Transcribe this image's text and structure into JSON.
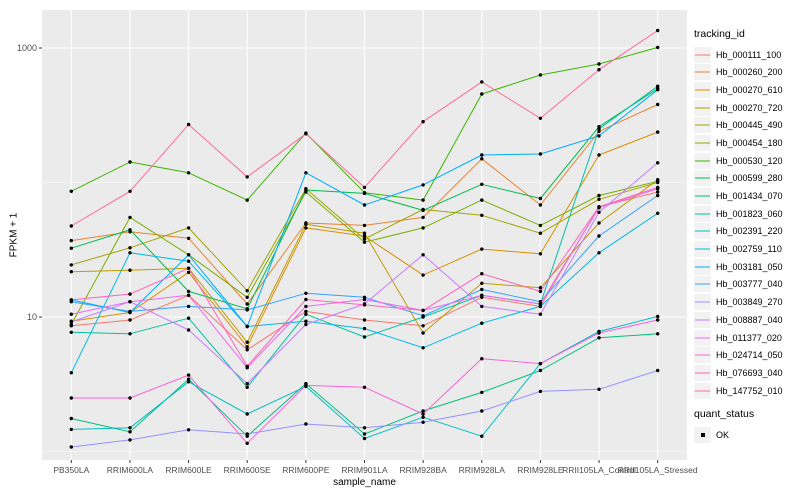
{
  "chart_data": {
    "type": "line",
    "xlabel": "sample_name",
    "ylabel": "FPKM + 1",
    "y_scale": "log10",
    "y_tick_values": [
      10,
      1000
    ],
    "y_tick_labels": [
      "10",
      "1000"
    ],
    "y_minor_gridline_values": [
      1,
      100
    ],
    "ylim": [
      0.85,
      1920
    ],
    "grid": true,
    "legend_position": "right",
    "point_color": "#000000",
    "categories": [
      "PB350LA",
      "RRIM600LA",
      "RRIM600LE",
      "RRIM600SE",
      "RRIM600PE",
      "RRIM901LA",
      "RRIM928BA",
      "RRIM928LA",
      "RRIM928LE",
      "RRII105LA_Control",
      "RRII105LA_Stressed"
    ],
    "series": [
      {
        "name": "Hb_000111_100",
        "color": "#F8766D",
        "values": [
          8.6,
          9.5,
          14.5,
          5.7,
          11,
          9.5,
          8.6,
          14,
          12,
          66,
          85
        ]
      },
      {
        "name": "Hb_000260_200",
        "color": "#EA8331",
        "values": [
          37,
          43,
          38.5,
          12.5,
          50,
          48,
          55,
          150,
          68,
          240,
          380
        ]
      },
      {
        "name": "Hb_000270_610",
        "color": "#D89000",
        "values": [
          9.3,
          10.8,
          21.5,
          6.0,
          46,
          40,
          20.5,
          32,
          29.5,
          160,
          237
        ]
      },
      {
        "name": "Hb_000270_720",
        "color": "#C09B00",
        "values": [
          21.7,
          22.3,
          23,
          6.5,
          49,
          42,
          7.6,
          17.8,
          16.5,
          50,
          105
        ]
      },
      {
        "name": "Hb_000445_490",
        "color": "#A3A500",
        "values": [
          24.4,
          32.7,
          46,
          15.7,
          90,
          38,
          63,
          57,
          42,
          75,
          100
        ]
      },
      {
        "name": "Hb_000454_180",
        "color": "#7CAE00",
        "values": [
          8.8,
          55,
          29,
          14,
          85,
          36,
          46,
          74,
          48,
          80,
          102
        ]
      },
      {
        "name": "Hb_000530_120",
        "color": "#39B600",
        "values": [
          86,
          142,
          118,
          74,
          233,
          84,
          74,
          455,
          630,
          760,
          1010
        ]
      },
      {
        "name": "Hb_000599_280",
        "color": "#00BB4E",
        "values": [
          32.5,
          44.5,
          15.5,
          11.5,
          88,
          83,
          62,
          97,
          76,
          260,
          500
        ]
      },
      {
        "name": "Hb_001434_070",
        "color": "#00BF7D",
        "values": [
          1.76,
          1.4,
          3.45,
          1.3,
          3.2,
          1.35,
          2.0,
          2.75,
          4.0,
          7.0,
          7.5
        ]
      },
      {
        "name": "Hb_001823_060",
        "color": "#00C1A3",
        "values": [
          7.7,
          7.5,
          9.8,
          3.0,
          10.5,
          7.1,
          10,
          14.5,
          12.5,
          250,
          520
        ]
      },
      {
        "name": "Hb_002391_220",
        "color": "#00BFC4",
        "values": [
          1.46,
          1.5,
          3.3,
          1.9,
          3.05,
          1.25,
          1.8,
          1.3,
          4.5,
          7.8,
          10.1
        ]
      },
      {
        "name": "Hb_002759_110",
        "color": "#00B8E7",
        "values": [
          3.85,
          30,
          26,
          8.5,
          9.3,
          8.2,
          5.9,
          9.0,
          12.0,
          30,
          59
        ]
      },
      {
        "name": "Hb_003181_050",
        "color": "#00ACFC",
        "values": [
          13.4,
          10.8,
          29,
          8.5,
          118,
          68,
          96,
          160,
          163,
          222,
          490
        ]
      },
      {
        "name": "Hb_003777_040",
        "color": "#35A2FF",
        "values": [
          13.0,
          11,
          12,
          11.3,
          15,
          14,
          10.2,
          16,
          13,
          40,
          80
        ]
      },
      {
        "name": "Hb_003849_270",
        "color": "#9590FF",
        "values": [
          1.08,
          1.22,
          1.45,
          1.35,
          1.6,
          1.5,
          1.65,
          2.0,
          2.8,
          2.9,
          4.0
        ]
      },
      {
        "name": "Hb_008887_040",
        "color": "#C77CFF",
        "values": [
          9.2,
          13.0,
          8.0,
          3.2,
          8.8,
          12.5,
          29,
          12,
          10.5,
          60,
          140
        ]
      },
      {
        "name": "Hb_011377_020",
        "color": "#E76BF3",
        "values": [
          10.5,
          13,
          14.5,
          4.2,
          12,
          13.5,
          11.2,
          14.5,
          12.5,
          65,
          90
        ]
      },
      {
        "name": "Hb_024714_050",
        "color": "#FA62DB",
        "values": [
          2.5,
          2.5,
          3.7,
          1.15,
          3.1,
          3.0,
          1.9,
          4.9,
          4.5,
          7.6,
          9.5
        ]
      },
      {
        "name": "Hb_076693_040",
        "color": "#FF62BC",
        "values": [
          13.4,
          14.8,
          23,
          4.3,
          13.5,
          12.3,
          11.2,
          21,
          15.5,
          66,
          92
        ]
      },
      {
        "name": "Hb_147752_010",
        "color": "#FF6A98",
        "values": [
          47.5,
          86,
          270,
          110,
          230,
          92,
          283,
          560,
          300,
          690,
          1350
        ]
      }
    ]
  },
  "legend": {
    "tracking_title": "tracking_id",
    "quant_title": "quant_status",
    "quant_items": [
      "OK"
    ]
  },
  "colors": {
    "panel_bg": "#EBEBEB",
    "grid": "#FFFFFF",
    "key_bg": "#F2F2F2",
    "tick_mark": "#333333",
    "tick_label": "#4D4D4D"
  }
}
